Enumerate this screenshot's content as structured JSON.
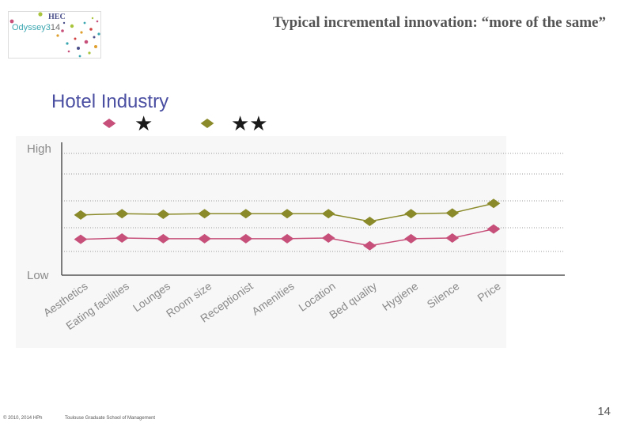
{
  "header": {
    "logo": {
      "brand": "HEC",
      "name": "Odyssey3",
      "year": "14"
    },
    "title": "Typical  incremental innovation: “more of the same”"
  },
  "chart_data": {
    "type": "line",
    "title": "Hotel Industry",
    "categories": [
      "Aesthetics",
      "Eating facilities",
      "Lounges",
      "Room size",
      "Receptionist",
      "Amenities",
      "Location",
      "Bed quality",
      "Hygiene",
      "Silence",
      "Price"
    ],
    "y_tick_labels": {
      "high": "High",
      "low": "Low"
    },
    "ylim": [
      0,
      10
    ],
    "grid": "horizontal-dotted",
    "legend_position": "top-left",
    "series": [
      {
        "name": "★",
        "marker": "diamond",
        "color": "#c7507a",
        "values": [
          2.8,
          2.9,
          2.85,
          2.85,
          2.85,
          2.85,
          2.9,
          2.3,
          2.85,
          2.9,
          3.6
        ]
      },
      {
        "name": "★★",
        "marker": "diamond",
        "color": "#8a8a2a",
        "values": [
          4.7,
          4.8,
          4.75,
          4.8,
          4.8,
          4.8,
          4.8,
          4.2,
          4.8,
          4.85,
          5.6
        ]
      }
    ]
  },
  "footer": {
    "copyright": "© 2010, 2014 HPh",
    "school": "Toulouse Graduate School of Management",
    "page": "14"
  }
}
